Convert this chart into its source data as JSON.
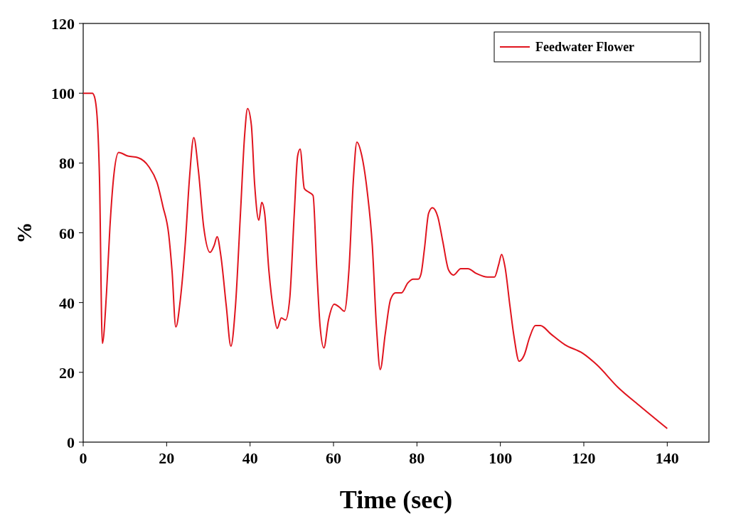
{
  "chart_data": {
    "type": "line",
    "xlabel": "Time (sec)",
    "ylabel": "%",
    "xlim": [
      0,
      150
    ],
    "xticks": [
      0,
      20,
      40,
      60,
      80,
      100,
      120,
      140
    ],
    "ylim": [
      0,
      120
    ],
    "yticks": [
      0,
      20,
      40,
      60,
      80,
      100,
      120
    ],
    "grid": false,
    "legend": "top right",
    "marker": "none",
    "line_style": "solid",
    "series": [
      {
        "name": "Feedwater Flower",
        "color": "#e0141e",
        "x": [
          0,
          2.2,
          2.7,
          3.4,
          3.9,
          4.6,
          5.6,
          6.4,
          7.3,
          8.5,
          10.7,
          13.2,
          15.7,
          17.8,
          19.1,
          20.5,
          21.3,
          22.2,
          23.3,
          24.5,
          25.5,
          26.5,
          27.6,
          28.9,
          30.4,
          31.4,
          32.1,
          33,
          34.3,
          35.4,
          36.5,
          37.7,
          38.7,
          39.4,
          40.3,
          41.1,
          42.1,
          42.8,
          43.5,
          44.5,
          45.7,
          46.5,
          47.5,
          48.5,
          49.5,
          50.6,
          51.4,
          52,
          53,
          54,
          55.1,
          56,
          56.8,
          57.7,
          58.8,
          60.2,
          61.4,
          62.6,
          63.7,
          64.8,
          65.6,
          66.8,
          68.1,
          69.3,
          70.3,
          71.2,
          72.4,
          73.7,
          74.9,
          76.3,
          77.8,
          79.1,
          80.3,
          81,
          81.8,
          82.8,
          83.7,
          85,
          86.2,
          87.6,
          88.8,
          90.5,
          92.2,
          94.3,
          96.9,
          98.6,
          99.6,
          100.3,
          101.1,
          102.3,
          103.3,
          104.5,
          105.7,
          107,
          108.4,
          109.6,
          112.1,
          115.5,
          119.7,
          123.1,
          128.2,
          133.2,
          140
        ],
        "values": [
          100,
          100,
          99,
          92,
          76,
          28.3,
          43,
          61.5,
          76,
          83,
          82,
          81.5,
          79,
          74,
          67.6,
          59.5,
          49,
          33,
          41,
          57.5,
          76,
          87.3,
          78,
          61.5,
          54.4,
          56.4,
          58.9,
          53.4,
          39,
          27.5,
          39,
          65.6,
          88,
          95.6,
          91,
          73.8,
          63.6,
          68.7,
          65.6,
          49.3,
          37,
          32.6,
          35.6,
          35,
          41,
          65.6,
          82,
          84,
          72.7,
          71.7,
          70.7,
          49.3,
          33,
          27,
          35,
          39.5,
          38.7,
          37.5,
          49.3,
          75.8,
          86,
          82,
          71.7,
          56.4,
          33,
          20.8,
          31,
          41,
          42.8,
          42.8,
          45.6,
          46.7,
          46.7,
          48.3,
          55.4,
          65.6,
          67.2,
          64.6,
          57.5,
          49.3,
          47.9,
          49.7,
          49.7,
          48.3,
          47.3,
          47.3,
          50.9,
          53.8,
          50.3,
          39,
          30,
          23.2,
          24.9,
          30,
          33.4,
          33.4,
          31,
          27.9,
          25.5,
          22.2,
          15.7,
          10.6,
          3.9
        ]
      }
    ]
  }
}
